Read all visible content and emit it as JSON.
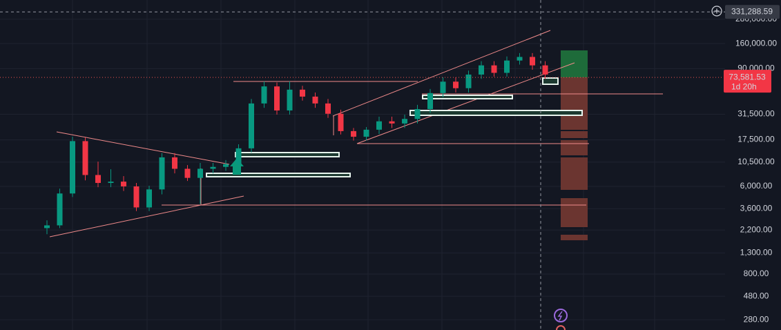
{
  "chart_data": {
    "type": "candlestick",
    "log_scale": true,
    "grid": true,
    "ylim": [
      221,
      436000
    ],
    "yticks": [
      {
        "value": 280,
        "label": "280.00"
      },
      {
        "value": 480,
        "label": "480.00"
      },
      {
        "value": 800,
        "label": "800.00"
      },
      {
        "value": 1300,
        "label": "1,300.00"
      },
      {
        "value": 2200,
        "label": "2,200.00"
      },
      {
        "value": 3600,
        "label": "3,600.00"
      },
      {
        "value": 6000,
        "label": "6,000.00"
      },
      {
        "value": 10500,
        "label": "10,500.00"
      },
      {
        "value": 17500,
        "label": "17,500.00"
      },
      {
        "value": 31500,
        "label": "31,500.00"
      },
      {
        "value": 90000,
        "label": "90,000.00"
      },
      {
        "value": 160000,
        "label": "160,000.00"
      },
      {
        "value": 280000,
        "label": "280,000.00"
      }
    ],
    "up_color": "#089981",
    "down_color": "#f23645",
    "candles": {
      "open": [
        2300,
        2450,
        5100,
        17000,
        7800,
        6500,
        6700,
        6000,
        3700,
        5600,
        11700,
        9000,
        7300,
        9000,
        9400,
        10000,
        14400,
        40400,
        59800,
        34400,
        55500,
        47300,
        40400,
        31900,
        21400,
        18800,
        22100,
        26800,
        25500,
        28300,
        35500,
        51300,
        66700,
        57400,
        78500,
        97000,
        81700,
        108400,
        117800,
        97000
      ],
      "high": [
        2750,
        5700,
        18800,
        18500,
        10600,
        8900,
        7600,
        6500,
        6100,
        12900,
        12900,
        9800,
        10300,
        10300,
        11000,
        15800,
        44800,
        67100,
        65600,
        67100,
        60700,
        52000,
        44800,
        35000,
        23000,
        23500,
        29800,
        29800,
        31300,
        39100,
        56400,
        73700,
        73700,
        86000,
        106700,
        106700,
        119000,
        128600,
        128600,
        106700
      ],
      "low": [
        2000,
        2300,
        4700,
        6900,
        5900,
        5900,
        5400,
        3400,
        3400,
        5000,
        8100,
        6800,
        4000,
        8100,
        8600,
        9200,
        13100,
        36600,
        31300,
        31300,
        43100,
        36600,
        29000,
        19800,
        17200,
        17200,
        20000,
        23000,
        23000,
        25500,
        32500,
        46500,
        52000,
        52000,
        71100,
        74900,
        74900,
        98800,
        87800,
        71100
      ],
      "close": [
        2450,
        5100,
        17000,
        7800,
        6500,
        6700,
        6000,
        3700,
        5600,
        11700,
        9000,
        7300,
        9000,
        9400,
        10000,
        14400,
        40400,
        59800,
        34400,
        55500,
        47300,
        40400,
        31900,
        21400,
        18800,
        22100,
        26800,
        25500,
        28300,
        35500,
        51300,
        66700,
        57400,
        78500,
        97000,
        81700,
        108400,
        117800,
        97000,
        78500
      ]
    },
    "last_price": {
      "value": 73581.53,
      "label": "73,581.53"
    },
    "countdown": "1d 20h",
    "crosshair_price": {
      "value": 331288.59,
      "label": "331,288.59"
    }
  }
}
